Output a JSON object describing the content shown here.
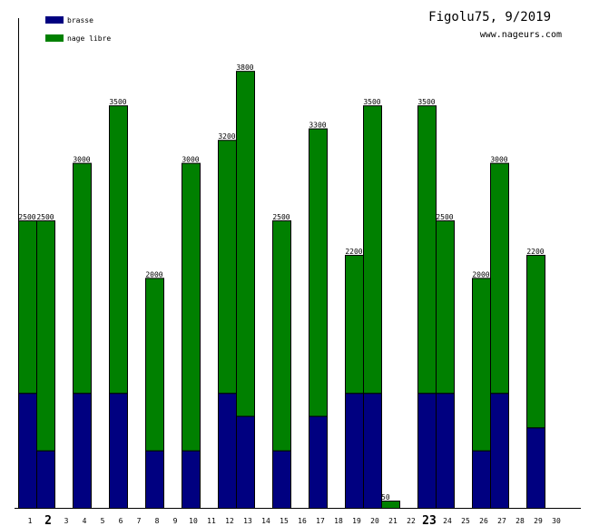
{
  "chart_data": {
    "type": "bar",
    "stacked": true,
    "title": "Figolu75, 9/2019",
    "subtitle": "www.nageurs.com",
    "x": [
      1,
      2,
      3,
      4,
      5,
      6,
      7,
      8,
      9,
      10,
      11,
      12,
      13,
      14,
      15,
      16,
      17,
      18,
      19,
      20,
      21,
      22,
      23,
      24,
      25,
      26,
      27,
      28,
      29,
      30
    ],
    "highlighted_days": [
      2,
      23
    ],
    "series": [
      {
        "name": "brasse",
        "color": "#000080",
        "values": [
          1000,
          500,
          0,
          1000,
          0,
          1000,
          0,
          500,
          0,
          500,
          0,
          1000,
          800,
          0,
          500,
          0,
          800,
          0,
          1000,
          1000,
          0,
          0,
          1000,
          1000,
          0,
          500,
          1000,
          0,
          700,
          0
        ]
      },
      {
        "name": "nage libre",
        "color": "#008000",
        "values": [
          1500,
          2000,
          0,
          2000,
          0,
          2500,
          0,
          1500,
          0,
          2500,
          0,
          2200,
          3000,
          0,
          2000,
          0,
          2500,
          0,
          1200,
          2500,
          50,
          0,
          2500,
          1500,
          0,
          1500,
          2000,
          0,
          1500,
          0
        ]
      }
    ],
    "totals": [
      2500,
      2500,
      0,
      3000,
      0,
      3500,
      0,
      2000,
      0,
      3000,
      0,
      3200,
      3800,
      0,
      2500,
      0,
      3300,
      0,
      2200,
      3500,
      50,
      0,
      3500,
      2500,
      0,
      2000,
      3000,
      0,
      2200,
      0
    ],
    "legend": "top-left",
    "ylim": [
      0,
      4250
    ],
    "grid": false
  }
}
